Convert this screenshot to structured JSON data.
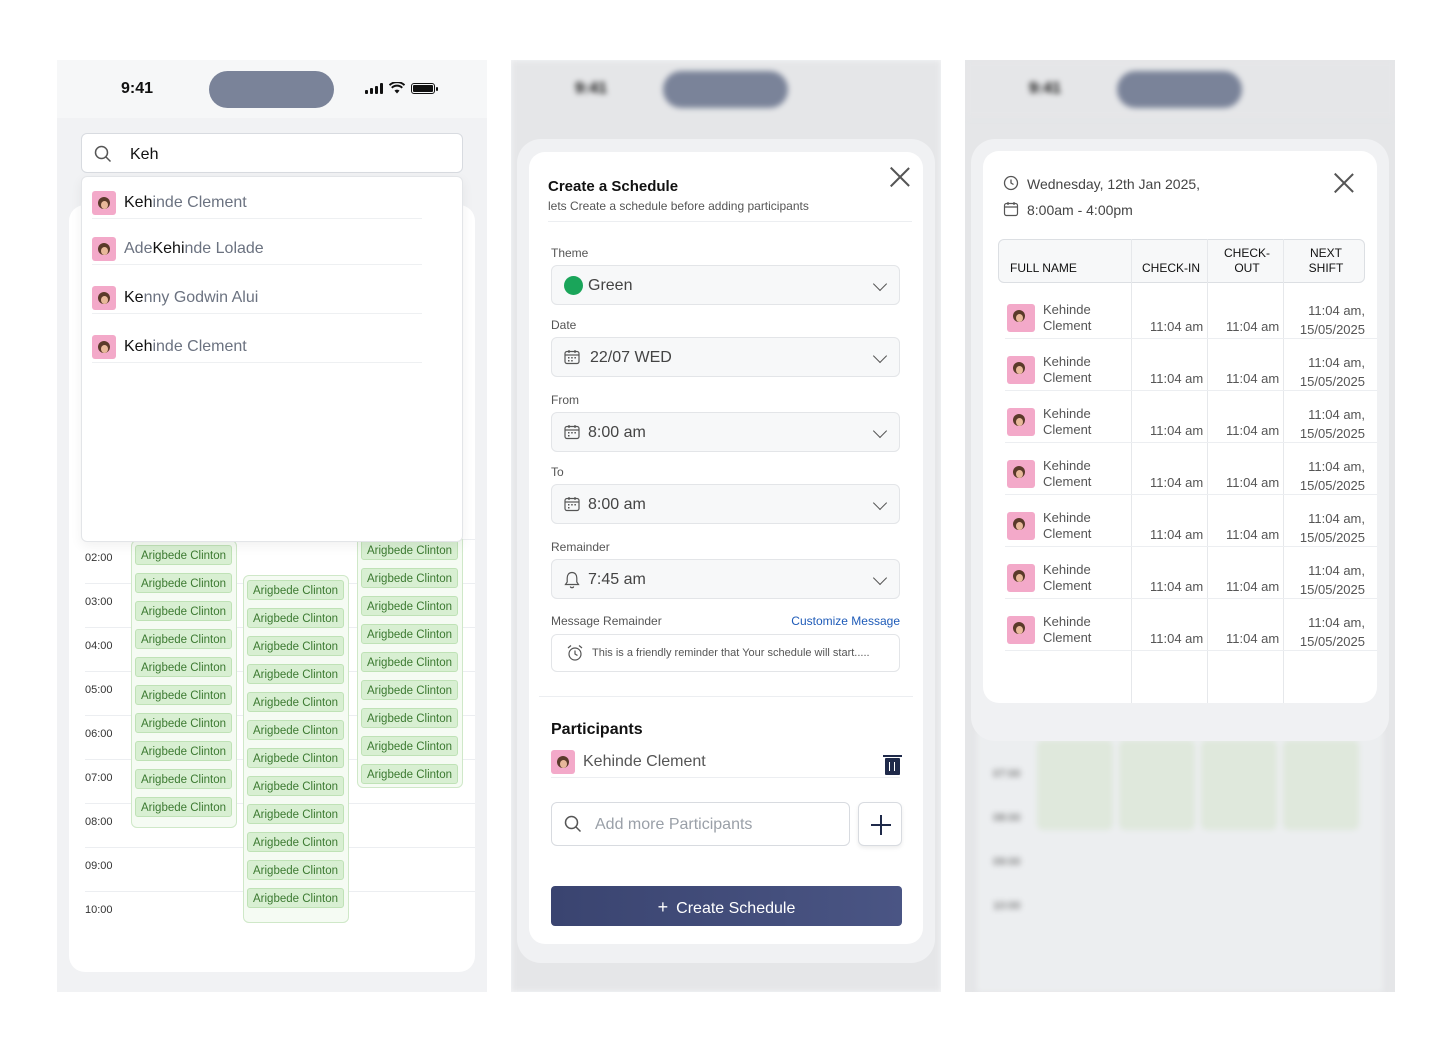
{
  "status": {
    "time": "9:41"
  },
  "search": {
    "value": "Keh",
    "results": [
      {
        "pre": "",
        "match": "Keh",
        "post": "inde Clement"
      },
      {
        "pre": "Ade",
        "match": "Kehi",
        "post": "nde Lolade"
      },
      {
        "pre": "",
        "match": "Ke",
        "post": "nny Godwin Alui"
      },
      {
        "pre": "",
        "match": "Keh",
        "post": "inde Clement"
      }
    ]
  },
  "calendar": {
    "hours": [
      "02:00",
      "03:00",
      "04:00",
      "05:00",
      "06:00",
      "07:00",
      "08:00",
      "09:00",
      "10:00"
    ],
    "event_label": "Arigbede Clinton"
  },
  "schedule_form": {
    "title": "Create a Schedule",
    "subtitle": "lets Create a schedule before adding participants",
    "theme_label": "Theme",
    "theme_value": "Green",
    "theme_color": "#1aa55a",
    "date_label": "Date",
    "date_value": "22/07 WED",
    "from_label": "From",
    "from_value": "8:00 am",
    "to_label": "To",
    "to_value": "8:00 am",
    "reminder_label": "Remainder",
    "reminder_value": "7:45 am",
    "message_label": "Message Remainder",
    "customize_link": "Customize Message",
    "message_text": "This is a friendly reminder that Your schedule will start.....",
    "participants_title": "Participants",
    "participant_name": "Kehinde Clement",
    "add_placeholder": "Add more Participants",
    "create_button": "Create Schedule"
  },
  "attendance": {
    "date": "Wednesday, 12th Jan 2025,",
    "time_range": "8:00am - 4:00pm",
    "headers": {
      "name": "FULL NAME",
      "checkin": "CHECK-IN",
      "checkout_1": "CHECK-",
      "checkout_2": "OUT",
      "next_1": "NEXT",
      "next_2": "SHIFT"
    },
    "rows": [
      {
        "first": "Kehinde",
        "last": "Clement",
        "checkin": "11:04 am",
        "checkout": "11:04 am",
        "next_1": "11:04 am,",
        "next_2": "15/05/2025"
      },
      {
        "first": "Kehinde",
        "last": "Clement",
        "checkin": "11:04 am",
        "checkout": "11:04 am",
        "next_1": "11:04 am,",
        "next_2": "15/05/2025"
      },
      {
        "first": "Kehinde",
        "last": "Clement",
        "checkin": "11:04 am",
        "checkout": "11:04 am",
        "next_1": "11:04 am,",
        "next_2": "15/05/2025"
      },
      {
        "first": "Kehinde",
        "last": "Clement",
        "checkin": "11:04 am",
        "checkout": "11:04 am",
        "next_1": "11:04 am,",
        "next_2": "15/05/2025"
      },
      {
        "first": "Kehinde",
        "last": "Clement",
        "checkin": "11:04 am",
        "checkout": "11:04 am",
        "next_1": "11:04 am,",
        "next_2": "15/05/2025"
      },
      {
        "first": "Kehinde",
        "last": "Clement",
        "checkin": "11:04 am",
        "checkout": "11:04 am",
        "next_1": "11:04 am,",
        "next_2": "15/05/2025"
      },
      {
        "first": "Kehinde",
        "last": "Clement",
        "checkin": "11:04 am",
        "checkout": "11:04 am",
        "next_1": "11:04 am,",
        "next_2": "15/05/2025"
      }
    ],
    "bg_hours": [
      "07:00",
      "08:00",
      "09:00",
      "10:00"
    ]
  },
  "icons": [
    "search-icon",
    "calendar-icon",
    "bell-icon",
    "alarm-icon",
    "clock-icon",
    "close-icon",
    "chevron-down-icon",
    "trash-icon",
    "plus-icon",
    "signal-icon",
    "wifi-icon",
    "battery-icon"
  ],
  "colors": {
    "primary": "#3a4470",
    "event_bg": "#d8efd2",
    "event_text": "#3c7a31",
    "link": "#1e5bb8"
  }
}
